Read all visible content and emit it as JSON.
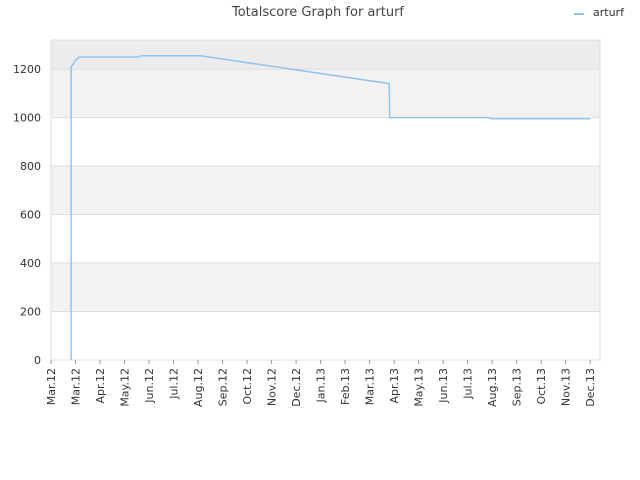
{
  "chart_data": {
    "type": "line",
    "title": "Totalscore Graph for arturf",
    "x": [
      0.82,
      0.82,
      0.9,
      1.0,
      1.15,
      3.6,
      3.65,
      6.1,
      13.8,
      13.82,
      17.9,
      17.95,
      22.0
    ],
    "series": [
      {
        "name": "arturf",
        "color": "#90c4f0",
        "values": [
          0,
          1210,
          1220,
          1235,
          1250,
          1250,
          1255,
          1255,
          1140,
          1000,
          1000,
          995,
          995
        ]
      }
    ],
    "xlim": [
      0,
      22.4
    ],
    "xticks": [
      {
        "value": 0,
        "label": "Mar.12"
      },
      {
        "value": 1,
        "label": "Mar.12"
      },
      {
        "value": 2,
        "label": "Apr.12"
      },
      {
        "value": 3,
        "label": "May.12"
      },
      {
        "value": 4,
        "label": "Jun.12"
      },
      {
        "value": 5,
        "label": "Jul.12"
      },
      {
        "value": 6,
        "label": "Aug.12"
      },
      {
        "value": 7,
        "label": "Sep.12"
      },
      {
        "value": 8,
        "label": "Oct.12"
      },
      {
        "value": 9,
        "label": "Nov.12"
      },
      {
        "value": 10,
        "label": "Dec.12"
      },
      {
        "value": 11,
        "label": "Jan.13"
      },
      {
        "value": 12,
        "label": "Feb.13"
      },
      {
        "value": 13,
        "label": "Mar.13"
      },
      {
        "value": 14,
        "label": "Apr.13"
      },
      {
        "value": 15,
        "label": "May.13"
      },
      {
        "value": 16,
        "label": "Jun.13"
      },
      {
        "value": 17,
        "label": "Jul.13"
      },
      {
        "value": 18,
        "label": "Aug.13"
      },
      {
        "value": 19,
        "label": "Sep.13"
      },
      {
        "value": 20,
        "label": "Oct.13"
      },
      {
        "value": 21,
        "label": "Nov.13"
      },
      {
        "value": 22,
        "label": "Dec.13"
      }
    ],
    "ylim": [
      0,
      1320
    ],
    "yticks": [
      0,
      200,
      400,
      600,
      800,
      1000,
      1200
    ],
    "grid": true,
    "legend": "top-right"
  }
}
